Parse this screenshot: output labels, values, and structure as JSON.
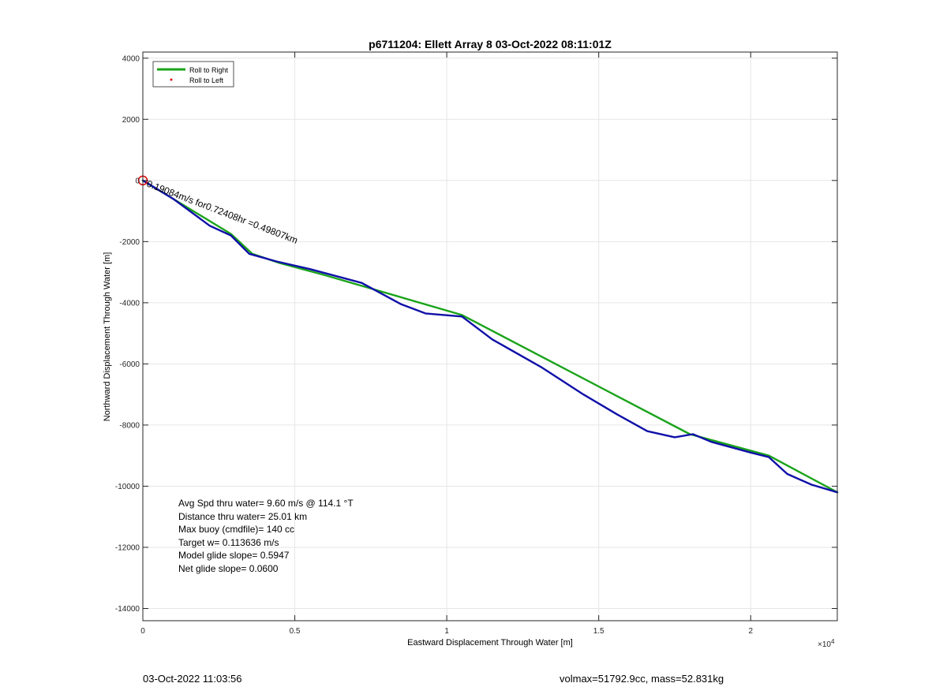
{
  "chart_data": {
    "type": "line",
    "title": "p6711204: Ellett Array 8 03-Oct-2022 08:11:01Z",
    "xlabel": "Eastward Displacement Through Water [m]",
    "ylabel": "Northward Displacement Through Water [m]",
    "x_exponent_label": "×10",
    "x_exponent": "4",
    "xlim": [
      0,
      22850
    ],
    "ylim": [
      -14400,
      4200
    ],
    "x_ticks": [
      0,
      5000,
      10000,
      15000,
      20000
    ],
    "x_tick_labels": [
      "0",
      "0.5",
      "1",
      "1.5",
      "2"
    ],
    "y_ticks": [
      4000,
      2000,
      0,
      -2000,
      -4000,
      -6000,
      -8000,
      -10000,
      -12000,
      -14000
    ],
    "y_tick_labels": [
      "4000",
      "2000",
      "0",
      "-2000",
      "-4000",
      "-6000",
      "-8000",
      "-10000",
      "-12000",
      "-14000"
    ],
    "grid": true,
    "legend_placement": "top-left",
    "legend": [
      {
        "label": "Roll to Right",
        "color": "#1aa31a",
        "style": "line"
      },
      {
        "label": "Roll to Left",
        "color": "#e01010",
        "style": "dot"
      }
    ],
    "series": [
      {
        "name": "Roll to Right",
        "color": "#1aa31a",
        "x": [
          0,
          2900,
          3600,
          4500,
          6000,
          10500,
          18000,
          20600,
          22850
        ],
        "y": [
          0,
          -1750,
          -2400,
          -2700,
          -3100,
          -4400,
          -8300,
          -9000,
          -10200
        ]
      },
      {
        "name": "",
        "color": "#1010a8",
        "x": [
          0,
          1000,
          2200,
          2900,
          3500,
          4400,
          5500,
          7200,
          8500,
          9300,
          10500,
          11500,
          13100,
          14500,
          15600,
          16600,
          17500,
          18100,
          18700,
          20000,
          20600,
          21200,
          22000,
          22850
        ],
        "y": [
          0,
          -600,
          -1480,
          -1800,
          -2400,
          -2650,
          -2900,
          -3350,
          -4050,
          -4350,
          -4450,
          -5200,
          -6100,
          -7000,
          -7650,
          -8200,
          -8400,
          -8300,
          -8550,
          -8900,
          -9050,
          -9600,
          -9950,
          -10200
        ]
      }
    ],
    "start_marker": {
      "x": 0,
      "y": 0,
      "color": "#e01010"
    },
    "annotations": {
      "slanted": "0.19084m/s for0.72408hr =0.49807km",
      "stats": [
        "Avg Spd thru water=  9.60 m/s @ 114.1 °T",
        "Distance thru water= 25.01 km",
        "Max buoy (cmdfile)= 140 cc",
        "Target w= 0.113636 m/s",
        "Model glide slope= 0.5947",
        "Net glide slope= 0.0600"
      ]
    }
  },
  "footer": {
    "left": "03-Oct-2022 11:03:56",
    "right": "volmax=51792.9cc, mass=52.831kg"
  }
}
